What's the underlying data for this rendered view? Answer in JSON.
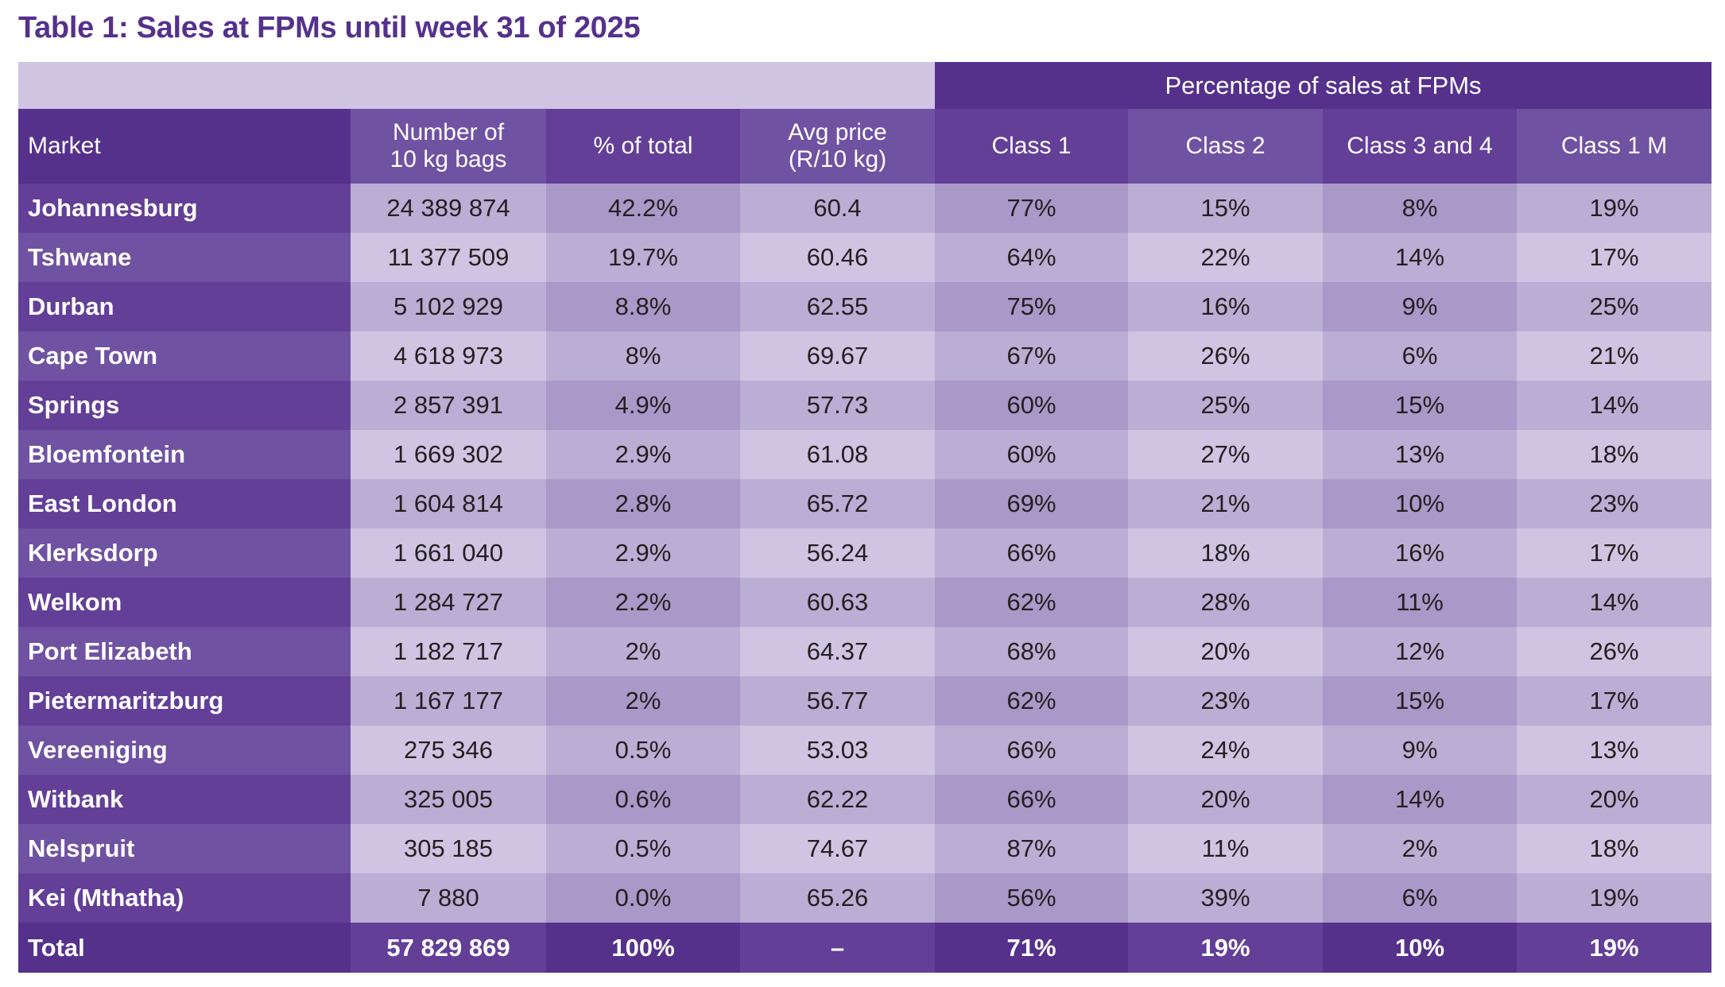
{
  "title": "Table 1: Sales at FPMs until week 31 of 2025",
  "group_header": "Percentage of sales at FPMs",
  "columns": {
    "market": "Market",
    "bags_line1": "Number of",
    "bags_line2": "10 kg bags",
    "pct_total": "% of total",
    "avg_price_line1": "Avg price",
    "avg_price_line2": "(R/10 kg)",
    "class1": "Class 1",
    "class2": "Class 2",
    "class34": "Class 3 and 4",
    "class1m": "Class 1 M"
  },
  "rows": [
    {
      "market": "Johannesburg",
      "bags": "24 389 874",
      "pct_total": "42.2%",
      "avg_price": "60.4",
      "class1": "77%",
      "class2": "15%",
      "class34": "8%",
      "class1m": "19%"
    },
    {
      "market": "Tshwane",
      "bags": "11 377 509",
      "pct_total": "19.7%",
      "avg_price": "60.46",
      "class1": "64%",
      "class2": "22%",
      "class34": "14%",
      "class1m": "17%"
    },
    {
      "market": "Durban",
      "bags": "5 102 929",
      "pct_total": "8.8%",
      "avg_price": "62.55",
      "class1": "75%",
      "class2": "16%",
      "class34": "9%",
      "class1m": "25%"
    },
    {
      "market": "Cape Town",
      "bags": "4 618 973",
      "pct_total": "8%",
      "avg_price": "69.67",
      "class1": "67%",
      "class2": "26%",
      "class34": "6%",
      "class1m": "21%"
    },
    {
      "market": "Springs",
      "bags": "2 857 391",
      "pct_total": "4.9%",
      "avg_price": "57.73",
      "class1": "60%",
      "class2": "25%",
      "class34": "15%",
      "class1m": "14%"
    },
    {
      "market": "Bloemfontein",
      "bags": "1 669 302",
      "pct_total": "2.9%",
      "avg_price": "61.08",
      "class1": "60%",
      "class2": "27%",
      "class34": "13%",
      "class1m": "18%"
    },
    {
      "market": "East London",
      "bags": "1 604 814",
      "pct_total": "2.8%",
      "avg_price": "65.72",
      "class1": "69%",
      "class2": "21%",
      "class34": "10%",
      "class1m": "23%"
    },
    {
      "market": "Klerksdorp",
      "bags": "1 661 040",
      "pct_total": "2.9%",
      "avg_price": "56.24",
      "class1": "66%",
      "class2": "18%",
      "class34": "16%",
      "class1m": "17%"
    },
    {
      "market": "Welkom",
      "bags": "1 284 727",
      "pct_total": "2.2%",
      "avg_price": "60.63",
      "class1": "62%",
      "class2": "28%",
      "class34": "11%",
      "class1m": "14%"
    },
    {
      "market": "Port Elizabeth",
      "bags": "1 182 717",
      "pct_total": "2%",
      "avg_price": "64.37",
      "class1": "68%",
      "class2": "20%",
      "class34": "12%",
      "class1m": "26%"
    },
    {
      "market": "Pietermaritzburg",
      "bags": "1 167 177",
      "pct_total": "2%",
      "avg_price": "56.77",
      "class1": "62%",
      "class2": "23%",
      "class34": "15%",
      "class1m": "17%"
    },
    {
      "market": "Vereeniging",
      "bags": "275 346",
      "pct_total": "0.5%",
      "avg_price": "53.03",
      "class1": "66%",
      "class2": "24%",
      "class34": "9%",
      "class1m": "13%"
    },
    {
      "market": "Witbank",
      "bags": "325 005",
      "pct_total": "0.6%",
      "avg_price": "62.22",
      "class1": "66%",
      "class2": "20%",
      "class34": "14%",
      "class1m": "20%"
    },
    {
      "market": "Nelspruit",
      "bags": "305 185",
      "pct_total": "0.5%",
      "avg_price": "74.67",
      "class1": "87%",
      "class2": "11%",
      "class34": "2%",
      "class1m": "18%"
    },
    {
      "market": "Kei (Mthatha)",
      "bags": "7 880",
      "pct_total": "0.0%",
      "avg_price": "65.26",
      "class1": "56%",
      "class2": "39%",
      "class34": "6%",
      "class1m": "19%"
    }
  ],
  "total": {
    "market": "Total",
    "bags": "57 829 869",
    "pct_total": "100%",
    "avg_price": "–",
    "class1": "71%",
    "class2": "19%",
    "class34": "10%",
    "class1m": "19%"
  },
  "colors": {
    "title": "#55318c",
    "header_dark": "#55318c",
    "header_mid": "#633f98",
    "header_light": "#7052a2",
    "cell_light": "#cfc5e2",
    "cell_mid": "#baaed4",
    "cell_dark": "#a998c8"
  }
}
